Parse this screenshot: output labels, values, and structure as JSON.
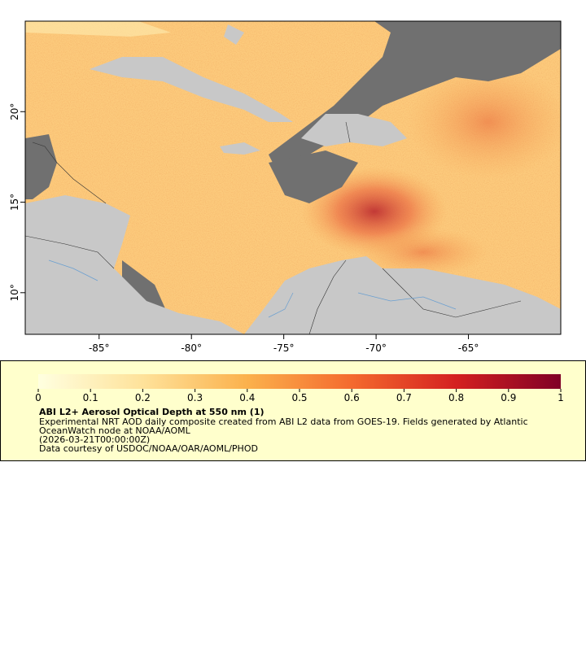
{
  "chart_data": {
    "type": "map",
    "xlim": [
      -89,
      -60
    ],
    "ylim": [
      7.7,
      25
    ],
    "xticks": [
      {
        "value": -85,
        "label": "-85°"
      },
      {
        "value": -80,
        "label": "-80°"
      },
      {
        "value": -75,
        "label": "-75°"
      },
      {
        "value": -70,
        "label": "-70°"
      },
      {
        "value": -65,
        "label": "-65°"
      }
    ],
    "yticks": [
      {
        "value": 10,
        "label": "10°"
      },
      {
        "value": 15,
        "label": "15°"
      },
      {
        "value": 20,
        "label": "20°"
      }
    ],
    "colorbar": {
      "lim": [
        0,
        1
      ],
      "ticks": [
        0,
        0.1,
        0.2,
        0.3,
        0.4,
        0.5,
        0.6,
        0.7,
        0.8,
        0.9,
        1
      ]
    },
    "legend": {
      "title": "ABI L2+ Aerosol Optical Depth at 550 nm (1)",
      "lines": [
        "Experimental NRT AOD daily composite created from ABI L2 data from GOES-19. Fields generated by Atlantic",
        "OceanWatch node at NOAA/AOML",
        "(2026-03-21T00:00:00Z)",
        "Data courtesy of USDOC/NOAA/OAR/AOML/PHOD"
      ]
    }
  }
}
